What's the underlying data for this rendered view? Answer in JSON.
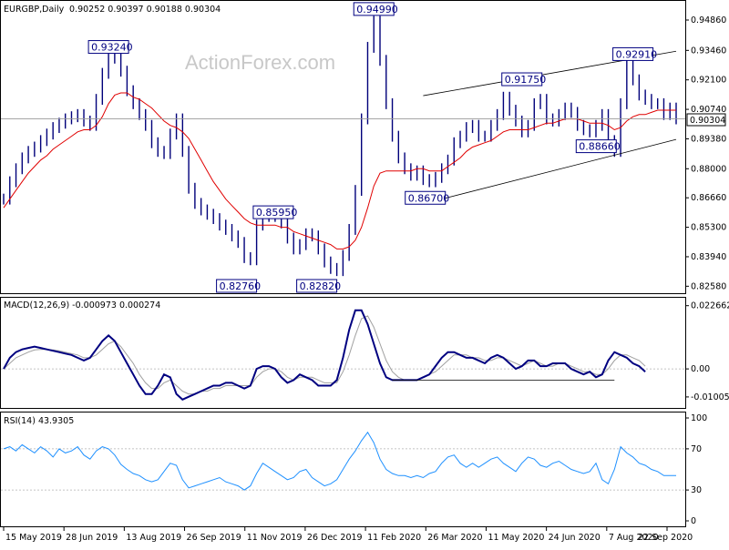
{
  "title": "EURGBP,Daily",
  "ohlc": "0.90252 0.90397 0.90188 0.90304",
  "watermark": "ActionForex.com",
  "current_price": "0.90304",
  "chart_data": [
    {
      "type": "line",
      "name": "price",
      "ylim": [
        0.823,
        0.957
      ],
      "yticks": [
        0.9486,
        0.9346,
        0.921,
        0.9074,
        0.8938,
        0.88,
        0.8666,
        0.853,
        0.8394,
        0.8258
      ],
      "ytick_labels": [
        "0.94860",
        "0.93460",
        "0.92100",
        "0.90740",
        "0.89380",
        "0.88000",
        "0.86660",
        "0.85300",
        "0.83940",
        "0.82580"
      ],
      "xtick_labels": [
        "15 May 2019",
        "28 Jun 2019",
        "13 Aug 2019",
        "26 Sep 2019",
        "11 Nov 2019",
        "26 Dec 2019",
        "11 Feb 2020",
        "26 Mar 2020",
        "11 May 2020",
        "24 Jun 2020",
        "7 Aug 2020",
        "22 Sep 2020"
      ],
      "series": [
        {
          "values": [
            0.866,
            0.874,
            0.88,
            0.885,
            0.888,
            0.89,
            0.893,
            0.896,
            0.899,
            0.901,
            0.903,
            0.904,
            0.905,
            0.902,
            0.9,
            0.912,
            0.924,
            0.932,
            0.931,
            0.925,
            0.916,
            0.91,
            0.905,
            0.9,
            0.892,
            0.888,
            0.887,
            0.896,
            0.903,
            0.888,
            0.871,
            0.864,
            0.861,
            0.859,
            0.857,
            0.854,
            0.852,
            0.849,
            0.846,
            0.839,
            0.838,
            0.854,
            0.858,
            0.86,
            0.858,
            0.855,
            0.848,
            0.843,
            0.845,
            0.85,
            0.849,
            0.843,
            0.837,
            0.834,
            0.833,
            0.84,
            0.852,
            0.87,
            0.903,
            0.936,
            0.948,
            0.93,
            0.91,
            0.895,
            0.885,
            0.88,
            0.877,
            0.879,
            0.875,
            0.874,
            0.876,
            0.88,
            0.884,
            0.892,
            0.895,
            0.899,
            0.9,
            0.895,
            0.895,
            0.9,
            0.905,
            0.913,
            0.907,
            0.902,
            0.897,
            0.9,
            0.91,
            0.912,
            0.903,
            0.902,
            0.905,
            0.908,
            0.906,
            0.9,
            0.898,
            0.897,
            0.9,
            0.905,
            0.893,
            0.888,
            0.91,
            0.928,
            0.921,
            0.914,
            0.912,
            0.91,
            0.91,
            0.905,
            0.908,
            0.903
          ]
        },
        {
          "values": [
            0.862,
            0.866,
            0.87,
            0.874,
            0.878,
            0.881,
            0.884,
            0.886,
            0.889,
            0.891,
            0.893,
            0.895,
            0.897,
            0.898,
            0.898,
            0.9,
            0.904,
            0.91,
            0.914,
            0.915,
            0.915,
            0.913,
            0.912,
            0.91,
            0.908,
            0.905,
            0.902,
            0.9,
            0.899,
            0.897,
            0.894,
            0.889,
            0.884,
            0.879,
            0.874,
            0.87,
            0.866,
            0.863,
            0.86,
            0.857,
            0.855,
            0.854,
            0.854,
            0.854,
            0.854,
            0.853,
            0.853,
            0.851,
            0.85,
            0.849,
            0.848,
            0.847,
            0.846,
            0.845,
            0.843,
            0.843,
            0.844,
            0.847,
            0.853,
            0.862,
            0.872,
            0.878,
            0.879,
            0.879,
            0.879,
            0.879,
            0.879,
            0.88,
            0.88,
            0.879,
            0.879,
            0.879,
            0.881,
            0.883,
            0.885,
            0.888,
            0.89,
            0.891,
            0.892,
            0.893,
            0.895,
            0.897,
            0.898,
            0.898,
            0.898,
            0.898,
            0.899,
            0.9,
            0.901,
            0.901,
            0.902,
            0.903,
            0.903,
            0.903,
            0.902,
            0.901,
            0.901,
            0.901,
            0.9,
            0.898,
            0.899,
            0.902,
            0.904,
            0.905,
            0.905,
            0.906,
            0.907,
            0.907,
            0.907,
            0.907
          ]
        }
      ],
      "annotations": [
        "0.94990",
        "0.93240",
        "0.92910",
        "0.91750",
        "0.88660",
        "0.86700",
        "0.85950",
        "0.82760",
        "0.82820"
      ],
      "annotation_values": [
        0.9499,
        0.9324,
        0.9291,
        0.9175,
        0.8866,
        0.867,
        0.8595,
        0.8276,
        0.8282
      ],
      "annotation_index": [
        60,
        17,
        102,
        84,
        99,
        71,
        44,
        41,
        54
      ],
      "channel": {
        "upper": [
          [
            68,
            0.9137
          ],
          [
            109,
            0.9342
          ]
        ],
        "lower": [
          [
            71,
            0.866
          ],
          [
            109,
            0.8935
          ]
        ]
      }
    },
    {
      "type": "line",
      "name": "MACD",
      "label": "MACD(12,26,9) -0.000973 0.000274",
      "ylim": [
        -0.014,
        0.0255
      ],
      "yticks": [
        0.022662,
        0.0,
        -0.010052
      ],
      "ytick_labels": [
        "0.022662",
        "0.00",
        "-0.010052"
      ],
      "series": [
        {
          "values": [
            0.0,
            0.004,
            0.006,
            0.007,
            0.0075,
            0.008,
            0.0075,
            0.007,
            0.0065,
            0.006,
            0.0055,
            0.005,
            0.004,
            0.003,
            0.004,
            0.007,
            0.01,
            0.012,
            0.01,
            0.006,
            0.002,
            -0.002,
            -0.006,
            -0.009,
            -0.009,
            -0.006,
            -0.002,
            -0.003,
            -0.009,
            -0.011,
            -0.01,
            -0.009,
            -0.008,
            -0.007,
            -0.006,
            -0.006,
            -0.005,
            -0.005,
            -0.006,
            -0.007,
            -0.006,
            0.0,
            0.001,
            0.001,
            0.0,
            -0.003,
            -0.005,
            -0.004,
            -0.002,
            -0.003,
            -0.004,
            -0.006,
            -0.006,
            -0.006,
            -0.004,
            0.004,
            0.014,
            0.021,
            0.021,
            0.016,
            0.009,
            0.002,
            -0.003,
            -0.004,
            -0.004,
            -0.004,
            -0.004,
            -0.004,
            -0.003,
            -0.002,
            0.001,
            0.004,
            0.006,
            0.006,
            0.005,
            0.004,
            0.004,
            0.003,
            0.002,
            0.004,
            0.005,
            0.004,
            0.002,
            0.0,
            0.001,
            0.003,
            0.003,
            0.001,
            0.001,
            0.002,
            0.002,
            0.002,
            0.0,
            -0.001,
            -0.002,
            -0.001,
            -0.003,
            -0.002,
            0.003,
            0.006,
            0.005,
            0.004,
            0.002,
            0.001,
            -0.001
          ]
        },
        {
          "values": [
            0.0,
            0.002,
            0.004,
            0.005,
            0.006,
            0.0068,
            0.007,
            0.007,
            0.0068,
            0.0065,
            0.006,
            0.0055,
            0.005,
            0.004,
            0.004,
            0.005,
            0.007,
            0.009,
            0.01,
            0.008,
            0.005,
            0.002,
            -0.002,
            -0.005,
            -0.007,
            -0.007,
            -0.005,
            -0.004,
            -0.006,
            -0.008,
            -0.009,
            -0.009,
            -0.008,
            -0.008,
            -0.007,
            -0.007,
            -0.006,
            -0.006,
            -0.006,
            -0.006,
            -0.006,
            -0.003,
            -0.001,
            0.0,
            0.0,
            -0.001,
            -0.003,
            -0.004,
            -0.003,
            -0.003,
            -0.003,
            -0.004,
            -0.005,
            -0.005,
            -0.005,
            -0.001,
            0.005,
            0.012,
            0.018,
            0.019,
            0.015,
            0.009,
            0.003,
            -0.001,
            -0.003,
            -0.004,
            -0.004,
            -0.004,
            -0.003,
            -0.002,
            -0.001,
            0.001,
            0.003,
            0.005,
            0.005,
            0.005,
            0.004,
            0.004,
            0.003,
            0.003,
            0.004,
            0.004,
            0.003,
            0.002,
            0.001,
            0.002,
            0.003,
            0.002,
            0.001,
            0.001,
            0.002,
            0.002,
            0.001,
            0.0,
            -0.001,
            -0.001,
            -0.002,
            -0.002,
            0.0,
            0.003,
            0.005,
            0.005,
            0.004,
            0.003,
            0.001
          ]
        }
      ],
      "support": [
        [
          63,
          -0.004
        ],
        [
          99,
          -0.004
        ]
      ]
    },
    {
      "type": "line",
      "name": "RSI",
      "label": "RSI(14) 43.9305",
      "ylim": [
        0,
        100
      ],
      "yticks": [
        100,
        70,
        30,
        0
      ],
      "ytick_labels": [
        "100",
        "70",
        "30",
        "0"
      ],
      "levels": [
        70,
        30
      ],
      "series": [
        {
          "values": [
            70,
            72,
            68,
            74,
            70,
            66,
            72,
            68,
            62,
            70,
            66,
            68,
            72,
            64,
            60,
            68,
            72,
            70,
            64,
            55,
            50,
            46,
            44,
            40,
            38,
            40,
            48,
            56,
            54,
            40,
            32,
            34,
            36,
            38,
            40,
            42,
            38,
            36,
            34,
            30,
            34,
            46,
            56,
            52,
            48,
            44,
            40,
            42,
            48,
            50,
            42,
            38,
            34,
            36,
            40,
            50,
            60,
            68,
            78,
            86,
            76,
            60,
            50,
            46,
            44,
            44,
            42,
            44,
            42,
            46,
            48,
            56,
            62,
            64,
            56,
            52,
            56,
            52,
            56,
            60,
            62,
            56,
            52,
            48,
            56,
            62,
            60,
            54,
            52,
            56,
            58,
            54,
            50,
            48,
            46,
            48,
            56,
            40,
            36,
            50,
            72,
            66,
            62,
            56,
            54,
            50,
            48,
            44,
            44,
            44
          ]
        }
      ]
    }
  ]
}
